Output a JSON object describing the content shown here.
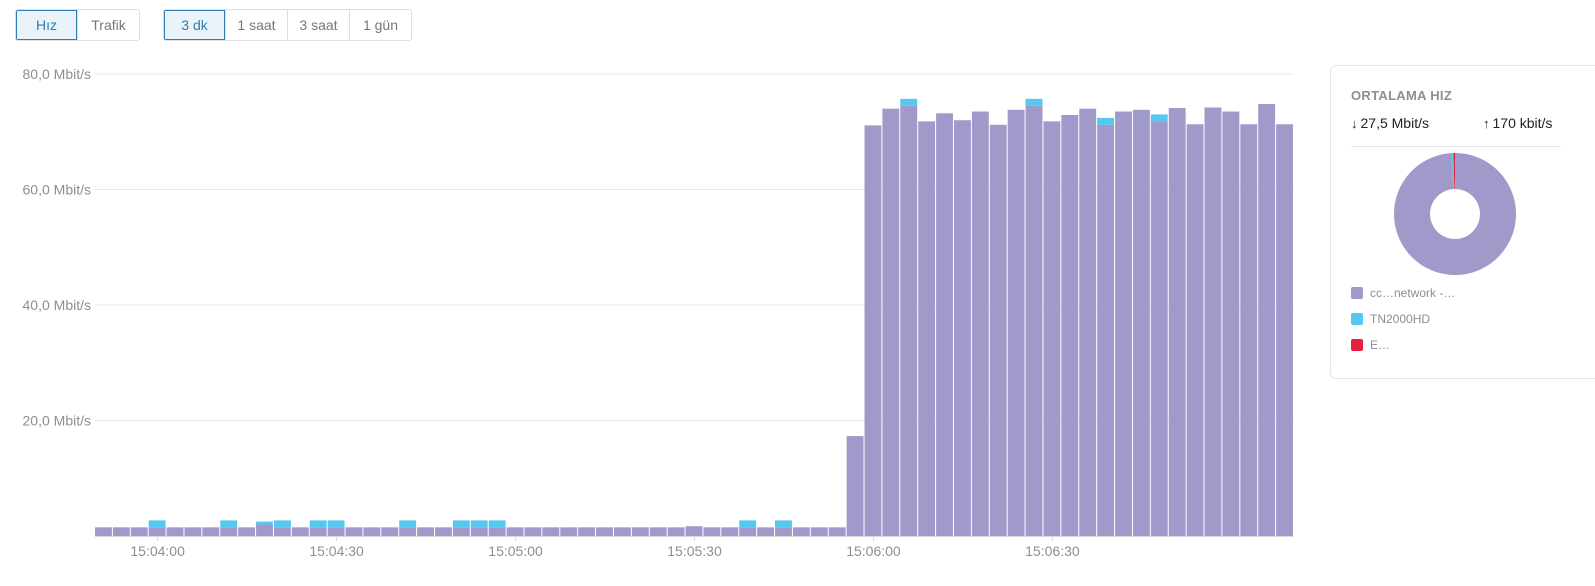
{
  "tabs_metric": [
    {
      "label": "Hız",
      "active": true
    },
    {
      "label": "Trafik",
      "active": false
    }
  ],
  "tabs_range": [
    {
      "label": "3 dk",
      "active": true
    },
    {
      "label": "1 saat",
      "active": false
    },
    {
      "label": "3 saat",
      "active": false
    },
    {
      "label": "1 gün",
      "active": false
    }
  ],
  "chart_data": {
    "type": "bar",
    "stacked": true,
    "ylim": [
      0,
      80
    ],
    "y_ticks": [
      {
        "value": 20,
        "label": "20,0 Mbit/s"
      },
      {
        "value": 40,
        "label": "40,0 Mbit/s"
      },
      {
        "value": 60,
        "label": "60,0 Mbit/s"
      },
      {
        "value": 80,
        "label": "80,0 Mbit/s"
      }
    ],
    "x_ticks": [
      {
        "index": 3,
        "label": "15:04:00"
      },
      {
        "index": 13,
        "label": "15:04:30"
      },
      {
        "index": 23,
        "label": "15:05:00"
      },
      {
        "index": 33,
        "label": "15:05:30"
      },
      {
        "index": 43,
        "label": "15:06:00"
      },
      {
        "index": 53,
        "label": "15:06:30"
      }
    ],
    "grid": true,
    "series": [
      {
        "color": "#9f9ac9",
        "values": [
          1.5,
          1.5,
          1.5,
          1.5,
          1.5,
          1.5,
          1.5,
          1.5,
          1.5,
          2,
          1.5,
          1.5,
          1.5,
          1.5,
          1.5,
          1.5,
          1.5,
          1.5,
          1.5,
          1.5,
          1.5,
          1.5,
          1.5,
          1.5,
          1.5,
          1.5,
          1.5,
          1.5,
          1.5,
          1.5,
          1.5,
          1.5,
          1.5,
          1.7,
          1.5,
          1.5,
          1.5,
          1.5,
          1.5,
          1.5,
          1.5,
          1.5,
          17.3,
          71.1,
          74,
          74.5,
          71.8,
          73.2,
          72,
          73.5,
          71.2,
          73.8,
          74.5,
          71.8,
          72.9,
          74,
          71.2,
          73.5,
          73.8,
          71.8,
          74.1,
          71.3,
          74.2,
          73.5,
          71.3,
          74.8,
          71.3
        ]
      },
      {
        "color": "#56c7ee",
        "values": [
          0,
          0,
          0,
          1.2,
          0,
          0,
          0,
          1.2,
          0,
          0.5,
          1.2,
          0,
          1.2,
          1.2,
          0,
          0,
          0,
          1.2,
          0,
          0,
          1.2,
          1.2,
          1.2,
          0,
          0,
          0,
          0,
          0,
          0,
          0,
          0,
          0,
          0,
          0,
          0,
          0,
          1.2,
          0,
          1.2,
          0,
          0,
          0,
          0,
          0,
          0,
          1.2,
          0,
          0,
          0,
          0,
          0,
          0,
          1.2,
          0,
          0,
          0,
          1.2,
          0,
          0,
          1.2,
          0,
          0,
          0,
          0,
          0,
          0,
          0
        ]
      }
    ]
  },
  "panel": {
    "title": "ORTALAMA HIZ",
    "down_rate": "27,5 Mbit/s",
    "up_rate": "170 kbit/s",
    "donut": {
      "slices": [
        {
          "value": 99,
          "color": "#9f9ac9"
        },
        {
          "value": 0.6,
          "color": "#56c7ee"
        },
        {
          "value": 0.4,
          "color": "#e8203f"
        }
      ]
    },
    "legend": [
      {
        "label": "cc…network -…",
        "color": "#9f9ac9"
      },
      {
        "label": "TN2000HD",
        "color": "#56c7ee"
      },
      {
        "label": "E…",
        "color": "#e8203f"
      }
    ]
  }
}
